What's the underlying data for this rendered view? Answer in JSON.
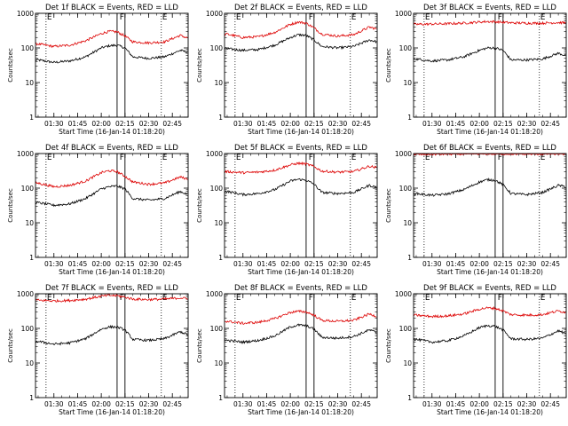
{
  "figure": {
    "xlabel": "Start Time (16-Jan-14 01:18:20)",
    "ylabel": "Counts/sec",
    "ytick_labels": [
      "1",
      "10",
      "100",
      "1000"
    ],
    "xtick_labels": [
      "01:30",
      "01:45",
      "02:00",
      "02:15",
      "02:30",
      "02:45"
    ],
    "marker_labels": [
      "E",
      "F",
      "E"
    ],
    "colors": {
      "events": "#000000",
      "lld": "#dd0000"
    }
  },
  "chart_data": [
    {
      "type": "line",
      "title": "Det 1f BLACK = Events, RED = LLD",
      "yscale": "log",
      "ylim": [
        1,
        1000
      ],
      "xlim": [
        "01:18:20",
        "02:55:00"
      ],
      "x_unit": "minutes",
      "markers": [
        {
          "label": "E",
          "time": "01:25"
        },
        {
          "label": "F",
          "time": "02:11"
        },
        {
          "label": "E",
          "time": "02:38"
        }
      ],
      "shaded_interval": [
        "02:10",
        "02:15"
      ],
      "series": [
        {
          "name": "Events",
          "color": "#000000",
          "x": [
            "01:20",
            "01:30",
            "01:40",
            "01:50",
            "02:00",
            "02:05",
            "02:10",
            "02:15",
            "02:20",
            "02:30",
            "02:40",
            "02:50",
            "02:55"
          ],
          "y": [
            45,
            38,
            42,
            55,
            100,
            115,
            120,
            100,
            55,
            50,
            55,
            85,
            75
          ]
        },
        {
          "name": "LLD",
          "color": "#dd0000",
          "x": [
            "01:20",
            "01:30",
            "01:40",
            "01:50",
            "02:00",
            "02:05",
            "02:10",
            "02:15",
            "02:20",
            "02:30",
            "02:40",
            "02:50",
            "02:55"
          ],
          "y": [
            130,
            110,
            120,
            160,
            260,
            300,
            290,
            220,
            150,
            140,
            150,
            230,
            190
          ]
        }
      ]
    },
    {
      "type": "line",
      "title": "Det 2f BLACK = Events, RED = LLD",
      "yscale": "log",
      "ylim": [
        1,
        1000
      ],
      "xlim": [
        "01:18:20",
        "02:55:00"
      ],
      "x_unit": "minutes",
      "markers": [
        {
          "label": "E",
          "time": "01:25"
        },
        {
          "label": "F",
          "time": "02:11"
        },
        {
          "label": "E",
          "time": "02:38"
        }
      ],
      "shaded_interval": [
        "02:10",
        "02:15"
      ],
      "series": [
        {
          "name": "Events",
          "color": "#000000",
          "x": [
            "01:20",
            "01:30",
            "01:40",
            "01:50",
            "02:00",
            "02:05",
            "02:10",
            "02:15",
            "02:20",
            "02:30",
            "02:40",
            "02:50",
            "02:55"
          ],
          "y": [
            95,
            85,
            90,
            120,
            200,
            240,
            230,
            170,
            110,
            100,
            110,
            170,
            150
          ]
        },
        {
          "name": "LLD",
          "color": "#dd0000",
          "x": [
            "01:20",
            "01:30",
            "01:40",
            "01:50",
            "02:00",
            "02:05",
            "02:10",
            "02:15",
            "02:20",
            "02:30",
            "02:40",
            "02:50",
            "02:55"
          ],
          "y": [
            250,
            200,
            210,
            280,
            480,
            560,
            520,
            380,
            250,
            220,
            240,
            400,
            350
          ]
        }
      ]
    },
    {
      "type": "line",
      "title": "Det 3f BLACK = Events, RED = LLD",
      "yscale": "log",
      "ylim": [
        1,
        1000
      ],
      "xlim": [
        "01:18:20",
        "02:55:00"
      ],
      "x_unit": "minutes",
      "markers": [
        {
          "label": "E",
          "time": "01:25"
        },
        {
          "label": "F",
          "time": "02:11"
        },
        {
          "label": "E",
          "time": "02:38"
        }
      ],
      "shaded_interval": [
        "02:10",
        "02:15"
      ],
      "series": [
        {
          "name": "Events",
          "color": "#000000",
          "x": [
            "01:20",
            "01:30",
            "01:40",
            "01:50",
            "02:00",
            "02:05",
            "02:10",
            "02:15",
            "02:20",
            "02:30",
            "02:40",
            "02:50",
            "02:55"
          ],
          "y": [
            48,
            42,
            45,
            55,
            85,
            100,
            100,
            85,
            45,
            45,
            48,
            70,
            60
          ]
        },
        {
          "name": "LLD",
          "color": "#dd0000",
          "x": [
            "01:20",
            "01:30",
            "01:40",
            "01:50",
            "02:00",
            "02:05",
            "02:10",
            "02:15",
            "02:20",
            "02:30",
            "02:40",
            "02:50",
            "02:55"
          ],
          "y": [
            480,
            490,
            500,
            520,
            560,
            580,
            570,
            550,
            530,
            520,
            520,
            540,
            530
          ]
        }
      ]
    },
    {
      "type": "line",
      "title": "Det 4f BLACK = Events, RED = LLD",
      "yscale": "log",
      "ylim": [
        1,
        1000
      ],
      "xlim": [
        "01:18:20",
        "02:55:00"
      ],
      "x_unit": "minutes",
      "markers": [
        {
          "label": "E",
          "time": "01:25"
        },
        {
          "label": "F",
          "time": "02:11"
        },
        {
          "label": "E",
          "time": "02:38"
        }
      ],
      "shaded_interval": [
        "02:10",
        "02:15"
      ],
      "series": [
        {
          "name": "Events",
          "color": "#000000",
          "x": [
            "01:20",
            "01:30",
            "01:40",
            "01:50",
            "02:00",
            "02:05",
            "02:10",
            "02:15",
            "02:20",
            "02:30",
            "02:40",
            "02:50",
            "02:55"
          ],
          "y": [
            38,
            32,
            35,
            50,
            95,
            110,
            115,
            95,
            50,
            45,
            50,
            80,
            65
          ]
        },
        {
          "name": "LLD",
          "color": "#dd0000",
          "x": [
            "01:20",
            "01:30",
            "01:40",
            "01:50",
            "02:00",
            "02:05",
            "02:10",
            "02:15",
            "02:20",
            "02:30",
            "02:40",
            "02:50",
            "02:55"
          ],
          "y": [
            140,
            110,
            120,
            160,
            280,
            320,
            300,
            220,
            150,
            130,
            140,
            210,
            180
          ]
        }
      ]
    },
    {
      "type": "line",
      "title": "Det 5f BLACK = Events, RED = LLD",
      "yscale": "log",
      "ylim": [
        1,
        1000
      ],
      "xlim": [
        "01:18:20",
        "02:55:00"
      ],
      "x_unit": "minutes",
      "markers": [
        {
          "label": "E",
          "time": "01:25"
        },
        {
          "label": "F",
          "time": "02:11"
        },
        {
          "label": "E",
          "time": "02:38"
        }
      ],
      "shaded_interval": [
        "02:10",
        "02:15"
      ],
      "series": [
        {
          "name": "Events",
          "color": "#000000",
          "x": [
            "01:20",
            "01:30",
            "01:40",
            "01:50",
            "02:00",
            "02:05",
            "02:10",
            "02:15",
            "02:20",
            "02:30",
            "02:40",
            "02:50",
            "02:55"
          ],
          "y": [
            80,
            65,
            70,
            90,
            160,
            180,
            170,
            130,
            75,
            70,
            75,
            120,
            105
          ]
        },
        {
          "name": "LLD",
          "color": "#dd0000",
          "x": [
            "01:20",
            "01:30",
            "01:40",
            "01:50",
            "02:00",
            "02:05",
            "02:10",
            "02:15",
            "02:20",
            "02:30",
            "02:40",
            "02:50",
            "02:55"
          ],
          "y": [
            300,
            280,
            290,
            330,
            470,
            520,
            500,
            420,
            310,
            290,
            300,
            430,
            390
          ]
        }
      ]
    },
    {
      "type": "line",
      "title": "Det 6f BLACK = Events, RED = LLD",
      "yscale": "log",
      "ylim": [
        1,
        1000
      ],
      "xlim": [
        "01:18:20",
        "02:55:00"
      ],
      "x_unit": "minutes",
      "markers": [
        {
          "label": "E",
          "time": "01:25"
        },
        {
          "label": "F",
          "time": "02:11"
        },
        {
          "label": "E",
          "time": "02:38"
        }
      ],
      "shaded_interval": [
        "02:10",
        "02:15"
      ],
      "series": [
        {
          "name": "Events",
          "color": "#000000",
          "x": [
            "01:20",
            "01:30",
            "01:40",
            "01:50",
            "02:00",
            "02:05",
            "02:10",
            "02:15",
            "02:20",
            "02:30",
            "02:40",
            "02:50",
            "02:55"
          ],
          "y": [
            70,
            62,
            68,
            90,
            150,
            175,
            170,
            125,
            70,
            65,
            75,
            120,
            110
          ]
        },
        {
          "name": "LLD",
          "color": "#dd0000",
          "x": [
            "01:20",
            "01:30",
            "01:40",
            "01:50",
            "02:00",
            "02:05",
            "02:10",
            "02:15",
            "02:20",
            "02:30",
            "02:40",
            "02:50",
            "02:55"
          ],
          "y": [
            950,
            960,
            970,
            980,
            990,
            990,
            990,
            985,
            980,
            975,
            975,
            985,
            980
          ]
        }
      ]
    },
    {
      "type": "line",
      "title": "Det 7f BLACK = Events, RED = LLD",
      "yscale": "log",
      "ylim": [
        1,
        1000
      ],
      "xlim": [
        "01:18:20",
        "02:55:00"
      ],
      "x_unit": "minutes",
      "markers": [
        {
          "label": "E",
          "time": "01:25"
        },
        {
          "label": "F",
          "time": "02:11"
        },
        {
          "label": "E",
          "time": "02:38"
        }
      ],
      "shaded_interval": [
        "02:10",
        "02:15"
      ],
      "series": [
        {
          "name": "Events",
          "color": "#000000",
          "x": [
            "01:20",
            "01:30",
            "01:40",
            "01:50",
            "02:00",
            "02:05",
            "02:10",
            "02:15",
            "02:20",
            "02:30",
            "02:40",
            "02:50",
            "02:55"
          ],
          "y": [
            42,
            35,
            38,
            50,
            95,
            110,
            110,
            90,
            48,
            45,
            50,
            80,
            65
          ]
        },
        {
          "name": "LLD",
          "color": "#dd0000",
          "x": [
            "01:20",
            "01:30",
            "01:40",
            "01:50",
            "02:00",
            "02:05",
            "02:10",
            "02:15",
            "02:20",
            "02:30",
            "02:40",
            "02:50",
            "02:55"
          ],
          "y": [
            650,
            620,
            640,
            700,
            850,
            900,
            880,
            800,
            700,
            680,
            700,
            760,
            720
          ]
        }
      ]
    },
    {
      "type": "line",
      "title": "Det 8f BLACK = Events, RED = LLD",
      "yscale": "log",
      "ylim": [
        1,
        1000
      ],
      "xlim": [
        "01:18:20",
        "02:55:00"
      ],
      "x_unit": "minutes",
      "markers": [
        {
          "label": "E",
          "time": "01:25"
        },
        {
          "label": "F",
          "time": "02:11"
        },
        {
          "label": "E",
          "time": "02:38"
        }
      ],
      "shaded_interval": [
        "02:10",
        "02:15"
      ],
      "series": [
        {
          "name": "Events",
          "color": "#000000",
          "x": [
            "01:20",
            "01:30",
            "01:40",
            "01:50",
            "02:00",
            "02:05",
            "02:10",
            "02:15",
            "02:20",
            "02:30",
            "02:40",
            "02:50",
            "02:55"
          ],
          "y": [
            45,
            40,
            45,
            60,
            110,
            125,
            120,
            95,
            55,
            52,
            58,
            90,
            75
          ]
        },
        {
          "name": "LLD",
          "color": "#dd0000",
          "x": [
            "01:20",
            "01:30",
            "01:40",
            "01:50",
            "02:00",
            "02:05",
            "02:10",
            "02:15",
            "02:20",
            "02:30",
            "02:40",
            "02:50",
            "02:55"
          ],
          "y": [
            160,
            140,
            150,
            190,
            290,
            310,
            300,
            240,
            170,
            160,
            170,
            260,
            220
          ]
        }
      ]
    },
    {
      "type": "line",
      "title": "Det 9f BLACK = Events, RED = LLD",
      "yscale": "log",
      "ylim": [
        1,
        1000
      ],
      "xlim": [
        "01:18:20",
        "02:55:00"
      ],
      "x_unit": "minutes",
      "markers": [
        {
          "label": "E",
          "time": "01:25"
        },
        {
          "label": "F",
          "time": "02:11"
        },
        {
          "label": "E",
          "time": "02:38"
        }
      ],
      "shaded_interval": [
        "02:10",
        "02:15"
      ],
      "series": [
        {
          "name": "Events",
          "color": "#000000",
          "x": [
            "01:20",
            "01:30",
            "01:40",
            "01:50",
            "02:00",
            "02:05",
            "02:10",
            "02:15",
            "02:20",
            "02:30",
            "02:40",
            "02:50",
            "02:55"
          ],
          "y": [
            48,
            40,
            44,
            60,
            105,
            120,
            115,
            90,
            50,
            48,
            52,
            85,
            70
          ]
        },
        {
          "name": "LLD",
          "color": "#dd0000",
          "x": [
            "01:20",
            "01:30",
            "01:40",
            "01:50",
            "02:00",
            "02:05",
            "02:10",
            "02:15",
            "02:20",
            "02:30",
            "02:40",
            "02:50",
            "02:55"
          ],
          "y": [
            240,
            220,
            230,
            260,
            360,
            390,
            380,
            320,
            250,
            240,
            250,
            320,
            290
          ]
        }
      ]
    }
  ]
}
